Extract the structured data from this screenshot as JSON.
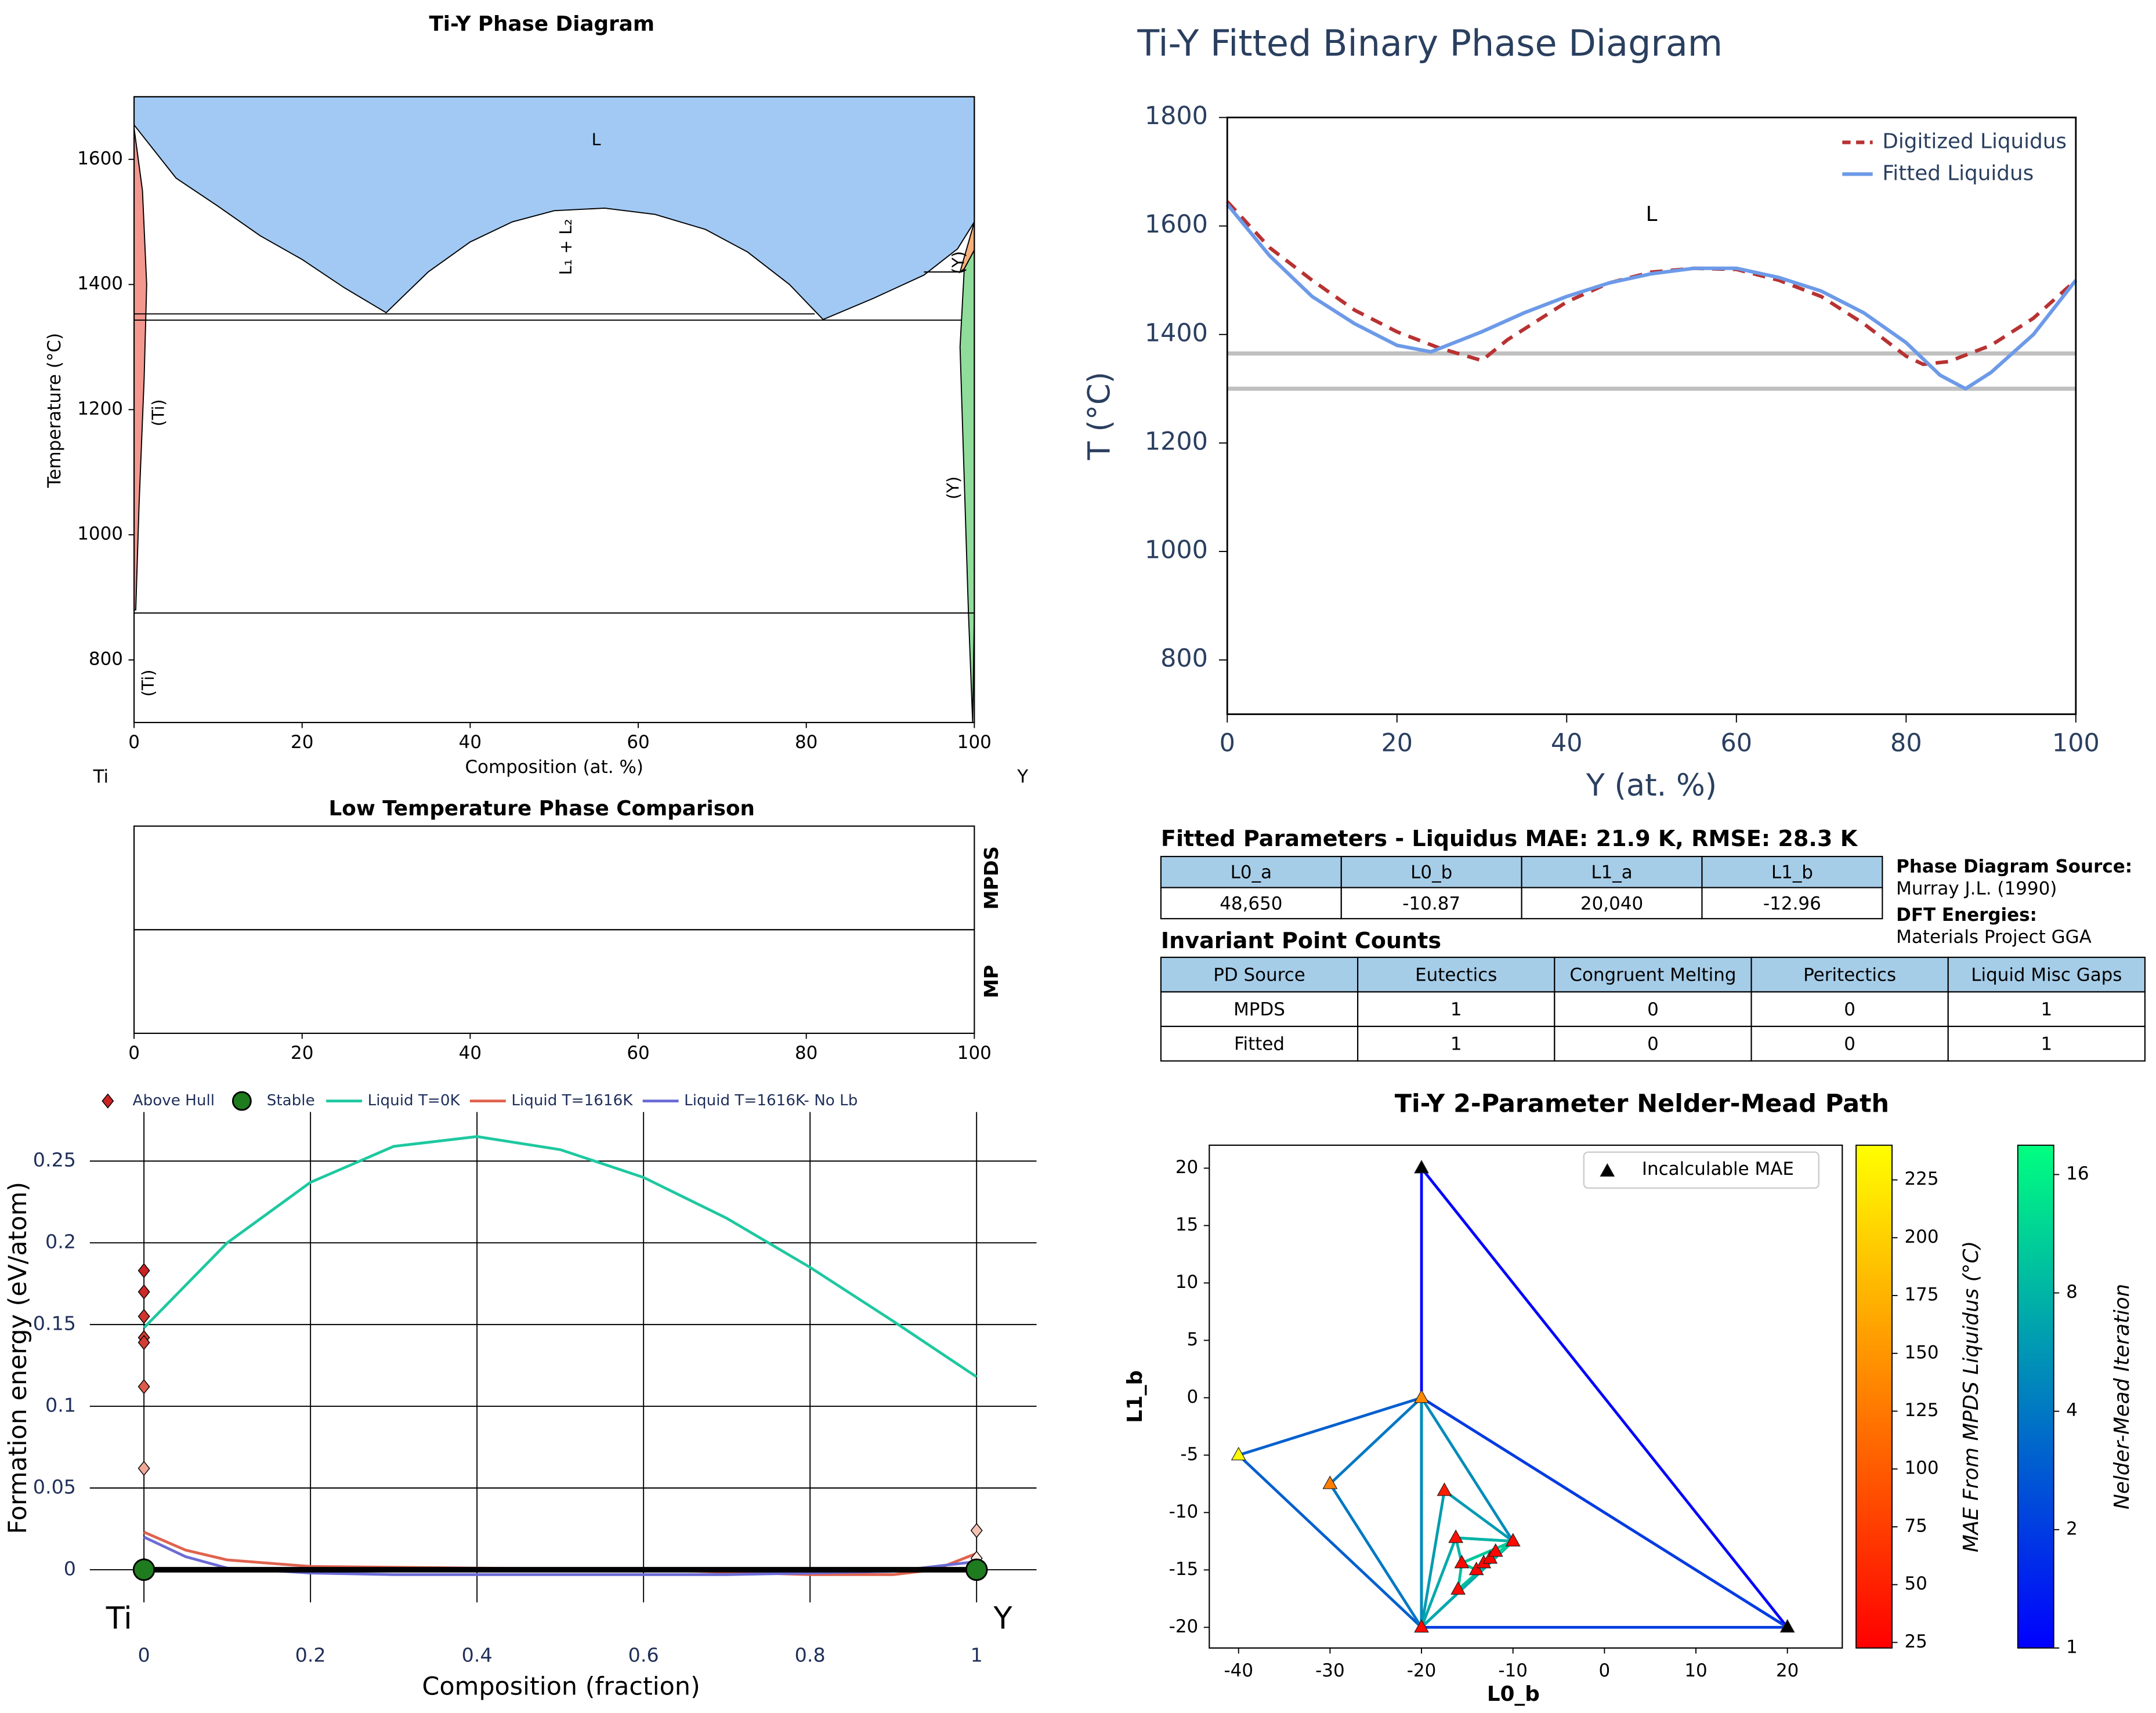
{
  "chart_data": [
    {
      "type": "phase",
      "title": "Ti-Y Phase Diagram",
      "xlabel": "Composition (at. %)",
      "ylabel": "Temperature (°C)",
      "end_labels": [
        "Ti",
        "Y"
      ],
      "xlim": [
        0,
        100
      ],
      "ylim": [
        700,
        1700
      ],
      "xticks": [
        0,
        20,
        40,
        60,
        80,
        100
      ],
      "yticks": [
        800,
        1000,
        1200,
        1400,
        1600
      ],
      "regions": [
        {
          "color": "#a1c9f4",
          "x": [
            0,
            0,
            5,
            10,
            15,
            20,
            25,
            30,
            35,
            40,
            45,
            50,
            56,
            62,
            68,
            73,
            78,
            82,
            88,
            94,
            98,
            100,
            100
          ],
          "y": [
            1700,
            1655,
            1570,
            1525,
            1478,
            1440,
            1395,
            1355,
            1420,
            1468,
            1500,
            1518,
            1522,
            1512,
            1488,
            1452,
            1400,
            1344,
            1378,
            1415,
            1457,
            1500,
            1700
          ]
        },
        {
          "color": "#f4978e",
          "x": [
            0,
            1,
            1.5,
            1.2,
            0.6,
            0.2,
            0
          ],
          "y": [
            1650,
            1550,
            1400,
            1250,
            1050,
            880,
            880
          ]
        },
        {
          "color": "#f7b07a",
          "x": [
            98.3,
            100,
            100,
            98.8
          ],
          "y": [
            1420,
            1500,
            1455,
            1425
          ]
        },
        {
          "color": "#8fdc9b",
          "x": [
            98.8,
            100,
            100,
            99.8,
            99.3,
            98.3
          ],
          "y": [
            1425,
            1455,
            875,
            700,
            875,
            1300
          ]
        }
      ],
      "lines": [
        {
          "x": [
            0,
            81
          ],
          "y": [
            1353,
            1353
          ]
        },
        {
          "x": [
            0,
            98.5
          ],
          "y": [
            1343,
            1343
          ]
        },
        {
          "x": [
            94,
            98.5
          ],
          "y": [
            1420,
            1420
          ]
        },
        {
          "x": [
            0,
            100
          ],
          "y": [
            875,
            875
          ]
        }
      ],
      "annotations": [
        {
          "text": "L",
          "x": 55,
          "y": 1630
        },
        {
          "text": "L₁ + L₂",
          "x": 51.5,
          "y": 1460,
          "vertical": true
        },
        {
          "text": "(Ti)",
          "x": 3,
          "y": 1195,
          "vertical": true
        },
        {
          "text": "(Ti)",
          "x": 1.8,
          "y": 763,
          "vertical": true
        },
        {
          "text": "(Y)",
          "x": 98.2,
          "y": 1435,
          "vertical": true
        },
        {
          "text": "(Y)",
          "x": 97.6,
          "y": 1075,
          "vertical": true
        }
      ]
    },
    {
      "type": "line",
      "title": "Ti-Y Fitted Binary Phase Diagram",
      "xlabel": "Y (at. %)",
      "ylabel": "T (°C)",
      "text_color": "#2a3f5f",
      "xlim": [
        0,
        100
      ],
      "ylim": [
        700,
        1800
      ],
      "xticks": [
        0,
        20,
        40,
        60,
        80,
        100
      ],
      "yticks": [
        800,
        1000,
        1200,
        1400,
        1600,
        1800
      ],
      "hlines": [
        1365,
        1300
      ],
      "hline_color": "#c0c0c0",
      "annotations": [
        {
          "text": "L",
          "x": 50,
          "y": 1620
        }
      ],
      "series": [
        {
          "name": "Digitized Liquidus",
          "color": "#b83232",
          "dash": true,
          "x": [
            0,
            5,
            10,
            15,
            20,
            25,
            30,
            33,
            40,
            45,
            50,
            55,
            60,
            65,
            70,
            75,
            80,
            82,
            85,
            90,
            95,
            100
          ],
          "values": [
            1645,
            1560,
            1500,
            1445,
            1405,
            1375,
            1352,
            1390,
            1460,
            1495,
            1515,
            1522,
            1520,
            1500,
            1470,
            1420,
            1360,
            1345,
            1350,
            1380,
            1430,
            1500
          ]
        },
        {
          "name": "Fitted Liquidus",
          "color": "#6d9ae8",
          "dash": false,
          "x": [
            0,
            5,
            10,
            15,
            20,
            24,
            30,
            35,
            40,
            45,
            50,
            55,
            60,
            65,
            70,
            75,
            80,
            84,
            87,
            90,
            95,
            100
          ],
          "values": [
            1640,
            1545,
            1470,
            1420,
            1380,
            1368,
            1405,
            1440,
            1470,
            1495,
            1512,
            1522,
            1522,
            1505,
            1480,
            1440,
            1385,
            1325,
            1300,
            1330,
            1400,
            1500
          ]
        }
      ]
    },
    {
      "type": "comparison",
      "title": "Low Temperature Phase Comparison",
      "rows": [
        "MPDS",
        "MP"
      ],
      "xlim": [
        0,
        100
      ],
      "xticks": [
        0,
        20,
        40,
        60,
        80,
        100
      ]
    },
    {
      "type": "hull",
      "xlabel": "Composition (fraction)",
      "ylabel": "Formation energy (eV/atom)",
      "end_labels": [
        "Ti",
        "Y"
      ],
      "text_color": "#1f2f5a",
      "xlim": [
        -0.065,
        1.072
      ],
      "ylim": [
        -0.02,
        0.28
      ],
      "xticks": [
        0,
        0.2,
        0.4,
        0.6,
        0.8,
        1
      ],
      "yticks": [
        0,
        0.05,
        0.1,
        0.15,
        0.2,
        0.25
      ],
      "grid": true,
      "points": [
        {
          "name": "Above Hull",
          "marker": "diamond",
          "color": "#c82423",
          "x": [
            0,
            0,
            0,
            0,
            0,
            0,
            0,
            0,
            1,
            1
          ],
          "values": [
            0.183,
            0.17,
            0.155,
            0.142,
            0.139,
            0.112,
            0.062,
            0.003,
            0.024,
            0.007
          ],
          "colors": [
            "#c82423",
            "#cc2a26",
            "#d0352d",
            "#d23a30",
            "#d33d33",
            "#dd5a4c",
            "#f0a898",
            "#fbe5dc",
            "#f4c2b4",
            "#fbece4"
          ]
        },
        {
          "name": "Stable",
          "marker": "circle",
          "color": "#1e7b1e",
          "x": [
            0,
            1
          ],
          "values": [
            0,
            0
          ]
        }
      ],
      "hull": {
        "color": "#000000",
        "x": [
          0,
          1
        ],
        "values": [
          0,
          0
        ]
      },
      "series": [
        {
          "name": "Liquid T=0K",
          "color": "#1ec8a0",
          "x": [
            0,
            0.1,
            0.2,
            0.3,
            0.4,
            0.5,
            0.6,
            0.7,
            0.8,
            0.9,
            1
          ],
          "values": [
            0.148,
            0.2,
            0.237,
            0.259,
            0.265,
            0.257,
            0.24,
            0.215,
            0.185,
            0.152,
            0.118
          ]
        },
        {
          "name": "Liquid T=1616K",
          "color": "#e0634f",
          "x": [
            0,
            0.05,
            0.1,
            0.2,
            0.4,
            0.6,
            0.8,
            0.9,
            0.95,
            1
          ],
          "values": [
            0.023,
            0.012,
            0.006,
            0.002,
            0.001,
            0,
            -0.003,
            -0.003,
            0,
            0.01
          ]
        },
        {
          "name": "Liquid T=1616K- No Lb",
          "color": "#6b6bd6",
          "x": [
            0,
            0.05,
            0.1,
            0.2,
            0.3,
            0.5,
            0.7,
            0.8,
            0.9,
            1
          ],
          "values": [
            0.02,
            0.008,
            0.001,
            -0.002,
            -0.003,
            -0.003,
            -0.003,
            -0.002,
            -0.001,
            0.005
          ]
        }
      ]
    },
    {
      "type": "simplex",
      "title": "Ti-Y 2-Parameter Nelder-Mead Path",
      "xlabel": "L0_b",
      "ylabel": "L1_b",
      "xlim": [
        -43.2,
        26
      ],
      "ylim": [
        -21.8,
        22
      ],
      "xticks": [
        -40,
        -30,
        -20,
        -10,
        0,
        10,
        20
      ],
      "yticks": [
        -20,
        -15,
        -10,
        -5,
        0,
        5,
        10,
        15,
        20
      ],
      "legend": "Incalculable MAE",
      "incalculable_color": "#000000",
      "points": {
        "x": [
          -20,
          20,
          -20,
          -40,
          -30,
          -20,
          -17.5,
          -16.25,
          -10,
          -15.6,
          -16,
          -14,
          -13.2,
          -12.5,
          -11.9
        ],
        "y": [
          20,
          -20,
          0,
          -5,
          -7.5,
          -20,
          -8.1,
          -12.2,
          -12.5,
          -14.4,
          -16.7,
          -15,
          -14.4,
          -14,
          -13.4
        ],
        "mae": [
          null,
          null,
          140,
          235,
          130,
          30,
          45,
          35,
          30,
          30,
          32,
          28,
          28,
          27,
          27
        ]
      },
      "simplices": [
        {
          "iteration": 1,
          "x": [
            -20,
            20,
            -20
          ],
          "y": [
            20,
            -20,
            0
          ]
        },
        {
          "iteration": 2,
          "x": [
            -20,
            20,
            -20
          ],
          "y": [
            0,
            -20,
            -20
          ]
        },
        {
          "iteration": 3,
          "x": [
            -40,
            -20,
            -20
          ],
          "y": [
            -5,
            0,
            -20
          ]
        },
        {
          "iteration": 4,
          "x": [
            -30,
            -20,
            -20
          ],
          "y": [
            -7.5,
            0,
            -20
          ]
        },
        {
          "iteration": 5,
          "x": [
            -10,
            -20,
            -20
          ],
          "y": [
            -12.5,
            0,
            -20
          ]
        },
        {
          "iteration": 6,
          "x": [
            -17.5,
            -10,
            -20
          ],
          "y": [
            -8.1,
            -12.5,
            -20
          ]
        },
        {
          "iteration": 7,
          "x": [
            -16.25,
            -10,
            -20
          ],
          "y": [
            -12.2,
            -12.5,
            -20
          ]
        },
        {
          "iteration": 8,
          "x": [
            -16.25,
            -10,
            -15.6
          ],
          "y": [
            -12.2,
            -12.5,
            -14.4
          ]
        },
        {
          "iteration": 9,
          "x": [
            -16,
            -15.6,
            -10
          ],
          "y": [
            -16.7,
            -14.4,
            -12.5
          ]
        },
        {
          "iteration": 10,
          "x": [
            -14,
            -15.6,
            -10
          ],
          "y": [
            -15,
            -14.4,
            -12.5
          ]
        },
        {
          "iteration": 11,
          "x": [
            -13.2,
            -14,
            -10
          ],
          "y": [
            -14.4,
            -15,
            -12.5
          ]
        },
        {
          "iteration": 12,
          "x": [
            -12.5,
            -13.2,
            -11.9
          ],
          "y": [
            -14,
            -14.4,
            -13.4
          ]
        }
      ],
      "colorbars": [
        {
          "label": "MAE From MPDS Liquidus (°C)",
          "colormap": "autumn",
          "log": false,
          "lim": [
            22.6,
            240
          ],
          "ticks": [
            25,
            50,
            75,
            100,
            125,
            150,
            175,
            200,
            225
          ]
        },
        {
          "label": "Nelder-Mead Iteration",
          "colormap": "winter",
          "log": true,
          "lim": [
            1,
            19
          ],
          "ticks": [
            1,
            2,
            4,
            8,
            16
          ]
        }
      ]
    }
  ],
  "table_header_color": "#a6cde8",
  "parameters_table": {
    "title": "Fitted Parameters - Liquidus MAE: 21.9 K, RMSE: 28.3 K",
    "columns": [
      "L0_a",
      "L0_b",
      "L1_a",
      "L1_b"
    ],
    "rows": [
      [
        "48,650",
        -10.87,
        "20,040",
        -12.96
      ]
    ]
  },
  "source_notes": [
    {
      "label": "Phase Diagram Source:",
      "text": "Murray J.L. (1990)"
    },
    {
      "label": "DFT Energies:",
      "text": "Materials Project GGA"
    }
  ],
  "invariant_table": {
    "title": "Invariant Point Counts",
    "columns": [
      "PD Source",
      "Eutectics",
      "Congruent Melting",
      "Peritectics",
      "Liquid Misc Gaps"
    ],
    "rows": [
      [
        "MPDS",
        1,
        0,
        0,
        1
      ],
      [
        "Fitted",
        1,
        0,
        0,
        1
      ]
    ]
  }
}
